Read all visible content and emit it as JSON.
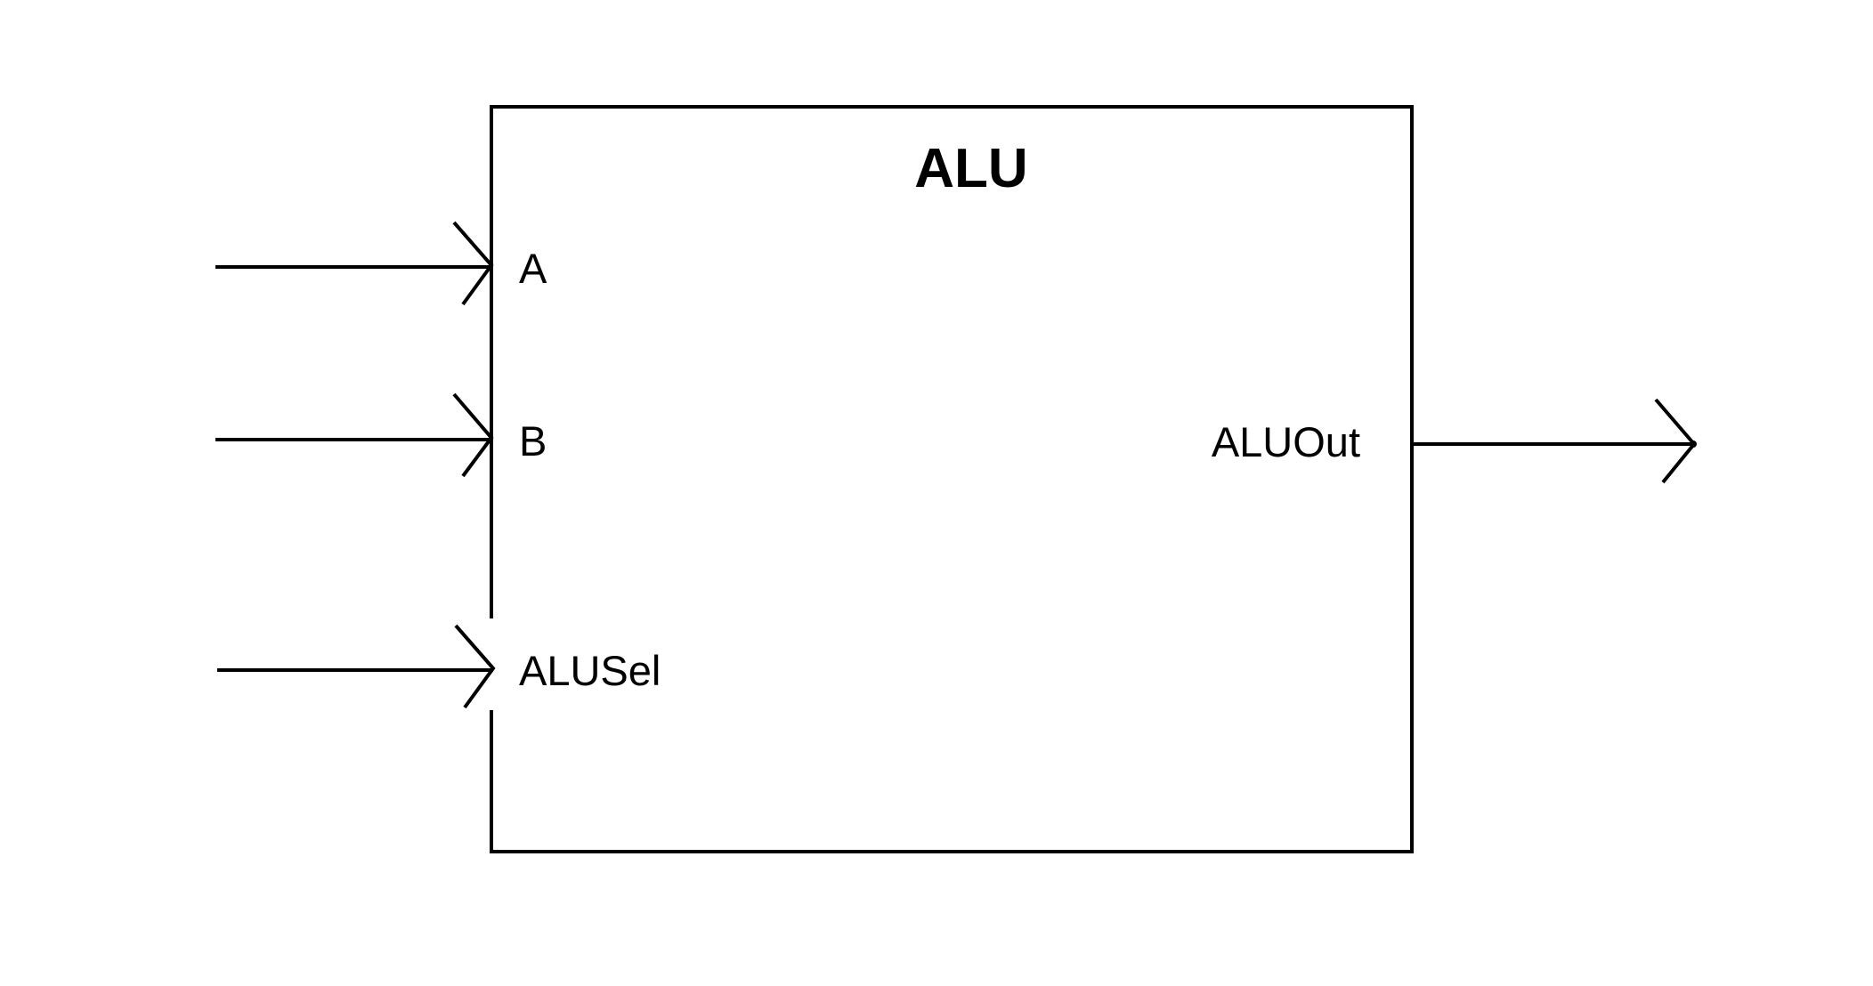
{
  "block": {
    "title": "ALU"
  },
  "inputs": [
    {
      "label": "A"
    },
    {
      "label": "B"
    },
    {
      "label": "ALUSel"
    }
  ],
  "outputs": [
    {
      "label": "ALUOut"
    }
  ],
  "colors": {
    "stroke": "#000000",
    "background": "#ffffff"
  }
}
